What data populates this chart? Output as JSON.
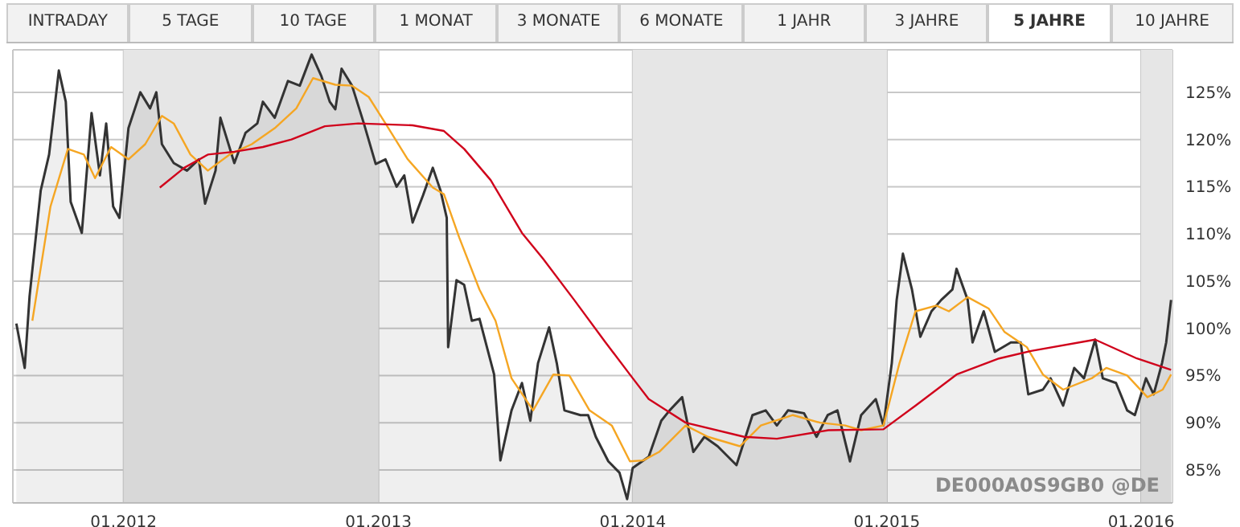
{
  "chart_data": {
    "type": "area",
    "annotations": [
      "INTRADAY",
      "5 TAGE",
      "10 TAGE",
      "1 MONAT",
      "3 MONATE",
      "6 MONATE",
      "1 JAHR",
      "3 JAHRE",
      "5 JAHRE",
      "10 JAHRE",
      "DE000A0S9GB0 @DE"
    ],
    "series": [
      {
        "color": "#333333",
        "x": [
          "2011-07-31",
          "2011-08-12",
          "2011-08-19",
          "2011-09-04",
          "2011-09-16",
          "2011-09-30",
          "2011-10-10",
          "2011-10-17",
          "2011-11-02",
          "2011-11-16",
          "2011-11-28",
          "2011-12-07",
          "2011-12-17",
          "2011-12-26",
          "2012-01-08",
          "2012-01-25",
          "2012-02-08",
          "2012-02-17",
          "2012-02-25",
          "2012-03-13",
          "2012-04-01",
          "2012-04-18",
          "2012-04-27",
          "2012-05-12",
          "2012-05-19",
          "2012-06-08",
          "2012-06-24",
          "2012-07-11",
          "2012-07-19",
          "2012-08-05",
          "2012-08-24",
          "2012-09-10",
          "2012-09-27",
          "2012-10-11",
          "2012-10-23",
          "2012-10-31",
          "2012-11-09",
          "2012-11-24",
          "2012-12-11",
          "2012-12-28",
          "2013-01-11",
          "2013-01-27",
          "2013-02-07",
          "2013-02-19",
          "2013-03-06",
          "2013-03-20",
          "2013-03-31",
          "2013-04-09",
          "2013-04-11",
          "2013-04-23",
          "2013-05-04",
          "2013-05-15",
          "2013-05-26",
          "2013-06-16",
          "2013-06-25",
          "2013-07-11",
          "2013-07-26",
          "2013-08-07",
          "2013-08-18",
          "2013-09-03",
          "2013-09-14",
          "2013-09-25",
          "2013-10-18",
          "2013-10-29",
          "2013-11-09",
          "2013-11-27",
          "2013-12-13",
          "2013-12-24",
          "2014-01-01",
          "2014-01-24",
          "2014-02-11",
          "2014-02-23",
          "2014-03-13",
          "2014-03-29",
          "2014-04-14",
          "2014-05-03",
          "2014-05-30",
          "2014-06-22",
          "2014-07-11",
          "2014-07-27",
          "2014-08-12",
          "2014-09-04",
          "2014-09-22",
          "2014-10-08",
          "2014-10-22",
          "2014-11-09",
          "2014-11-25",
          "2014-12-16",
          "2014-12-27",
          "2015-01-08",
          "2015-01-15",
          "2015-01-24",
          "2015-02-06",
          "2015-02-18",
          "2015-03-06",
          "2015-03-20",
          "2015-04-05",
          "2015-04-11",
          "2015-04-27",
          "2015-05-04",
          "2015-05-20",
          "2015-06-05",
          "2015-06-28",
          "2015-07-12",
          "2015-07-23",
          "2015-08-13",
          "2015-08-24",
          "2015-09-11",
          "2015-09-27",
          "2015-10-11",
          "2015-10-27",
          "2015-11-07",
          "2015-11-26",
          "2015-12-12",
          "2015-12-23",
          "2016-01-08",
          "2016-01-19",
          "2016-01-31",
          "2016-02-06",
          "2016-02-13"
        ],
        "values": [
          100.5,
          95.8,
          103.4,
          114.6,
          118.4,
          127.3,
          124,
          113.4,
          110.1,
          122.8,
          116.2,
          121.7,
          112.9,
          111.7,
          121.2,
          125,
          123.3,
          125,
          119.5,
          117.5,
          116.7,
          117.9,
          113.2,
          116.7,
          122.3,
          117.5,
          120.7,
          121.7,
          124,
          122.3,
          126.2,
          125.7,
          129,
          126.7,
          124,
          123.2,
          127.5,
          125.7,
          121.7,
          117.4,
          117.9,
          115,
          116.2,
          111.2,
          114.1,
          117,
          114.6,
          111.7,
          98,
          105.1,
          104.6,
          100.8,
          101,
          95.1,
          86,
          91.3,
          94.2,
          90.2,
          96.3,
          100.1,
          96.3,
          91.3,
          90.8,
          90.8,
          88.5,
          85.9,
          84.7,
          81.9,
          85.2,
          86.4,
          90.2,
          91.3,
          92.7,
          86.9,
          88.5,
          87.5,
          85.5,
          90.8,
          91.3,
          89.7,
          91.3,
          91,
          88.5,
          90.8,
          91.3,
          85.9,
          90.8,
          92.5,
          89.7,
          96.3,
          103,
          107.9,
          104.1,
          99.1,
          101.8,
          103,
          104.1,
          106.3,
          103,
          98.5,
          101.8,
          97.5,
          98.5,
          98.5,
          93,
          93.5,
          94.7,
          91.8,
          95.8,
          94.7,
          98.8,
          94.7,
          94.2,
          91.3,
          90.8,
          94.7,
          93,
          96.3,
          98.5,
          103
        ]
      },
      {
        "type": "line",
        "color": "#f5a623",
        "x": [
          "2011-08-23",
          "2011-09-18",
          "2011-10-13",
          "2011-11-05",
          "2011-11-21",
          "2011-12-14",
          "2012-01-08",
          "2012-02-01",
          "2012-02-25",
          "2012-03-13",
          "2012-04-06",
          "2012-05-01",
          "2012-06-01",
          "2012-07-03",
          "2012-08-05",
          "2012-09-05",
          "2012-09-29",
          "2012-10-31",
          "2012-11-24",
          "2012-12-18",
          "2013-01-11",
          "2013-02-12",
          "2013-03-20",
          "2013-04-05",
          "2013-04-27",
          "2013-05-26",
          "2013-06-18",
          "2013-07-11",
          "2013-08-11",
          "2013-09-09",
          "2013-10-02",
          "2013-10-31",
          "2013-12-02",
          "2013-12-28",
          "2014-01-16",
          "2014-02-08",
          "2014-03-18",
          "2014-04-19",
          "2014-06-04",
          "2014-07-04",
          "2014-08-19",
          "2014-09-27",
          "2014-11-02",
          "2014-11-25",
          "2014-12-27",
          "2015-01-19",
          "2015-02-11",
          "2015-03-13",
          "2015-03-31",
          "2015-04-27",
          "2015-05-27",
          "2015-06-19",
          "2015-07-21",
          "2015-08-13",
          "2015-09-11",
          "2015-10-22",
          "2015-11-12",
          "2015-12-12",
          "2016-01-10",
          "2016-02-01",
          "2016-02-13"
        ],
        "values": [
          100.8,
          112.9,
          119,
          118.4,
          115.9,
          119.2,
          117.9,
          119.5,
          122.5,
          121.7,
          118.4,
          116.7,
          118.4,
          119.5,
          121.2,
          123.3,
          126.5,
          125.8,
          125.7,
          124.5,
          121.7,
          117.9,
          114.9,
          114.2,
          109.6,
          104.1,
          100.8,
          94.7,
          91.3,
          95.1,
          95,
          91.3,
          89.7,
          85.9,
          86,
          86.9,
          89.7,
          88.5,
          87.5,
          89.7,
          90.8,
          90,
          89.7,
          89.2,
          89.7,
          96.3,
          101.8,
          102.4,
          101.8,
          103.3,
          102.1,
          99.6,
          98,
          95.1,
          93.5,
          94.7,
          95.8,
          95,
          92.7,
          93.5,
          95.1
        ]
      },
      {
        "type": "line",
        "color": "#d0021b",
        "x": [
          "2012-02-22",
          "2012-03-28",
          "2012-05-01",
          "2012-06-08",
          "2012-07-19",
          "2012-08-29",
          "2012-10-16",
          "2012-12-03",
          "2013-02-19",
          "2013-04-05",
          "2013-05-04",
          "2013-06-11",
          "2013-07-26",
          "2013-08-25",
          "2013-10-09",
          "2013-11-23",
          "2013-12-29",
          "2014-01-24",
          "2014-03-18",
          "2014-06-10",
          "2014-07-27",
          "2014-10-09",
          "2014-12-27",
          "2015-02-11",
          "2015-04-11",
          "2015-06-11",
          "2015-07-27",
          "2015-10-27",
          "2015-12-26",
          "2016-02-13"
        ],
        "values": [
          114.9,
          117,
          118.4,
          118.7,
          119.2,
          120,
          121.4,
          121.7,
          121.5,
          120.9,
          119,
          115.7,
          110.1,
          107.4,
          103,
          98.5,
          95,
          92.5,
          90,
          88.5,
          88.3,
          89.2,
          89.3,
          91.8,
          95.1,
          96.8,
          97.6,
          98.8,
          96.8,
          95.6
        ]
      }
    ],
    "xlim": [
      "2011-07-26",
      "2016-02-15"
    ],
    "xticks": [
      {
        "value": "2012-01-01",
        "label": "01.2012"
      },
      {
        "value": "2013-01-01",
        "label": "01.2013"
      },
      {
        "value": "2014-01-01",
        "label": "01.2014"
      },
      {
        "value": "2015-01-01",
        "label": "01.2015"
      },
      {
        "value": "2016-01-01",
        "label": "01.2016"
      }
    ],
    "ylim": [
      81.5,
      129.5
    ],
    "yticks": [
      {
        "value": 85,
        "label": "85%"
      },
      {
        "value": 90,
        "label": "90%"
      },
      {
        "value": 95,
        "label": "95%"
      },
      {
        "value": 100,
        "label": "100%"
      },
      {
        "value": 105,
        "label": "105%"
      },
      {
        "value": 110,
        "label": "110%"
      },
      {
        "value": 115,
        "label": "115%"
      },
      {
        "value": 120,
        "label": "120%"
      },
      {
        "value": 125,
        "label": "125%"
      }
    ],
    "bands": [
      {
        "axis": "x",
        "from": "2012-01-01",
        "to": "2013-01-01",
        "color": "#e6e6e6"
      },
      {
        "axis": "x",
        "from": "2014-01-01",
        "to": "2015-01-01",
        "color": "#e6e6e6"
      },
      {
        "axis": "x",
        "from": "2016-01-01",
        "to": "2016-02-15",
        "color": "#e6e6e6"
      }
    ],
    "grid": true,
    "marker": "none",
    "line_style": "solid"
  }
}
